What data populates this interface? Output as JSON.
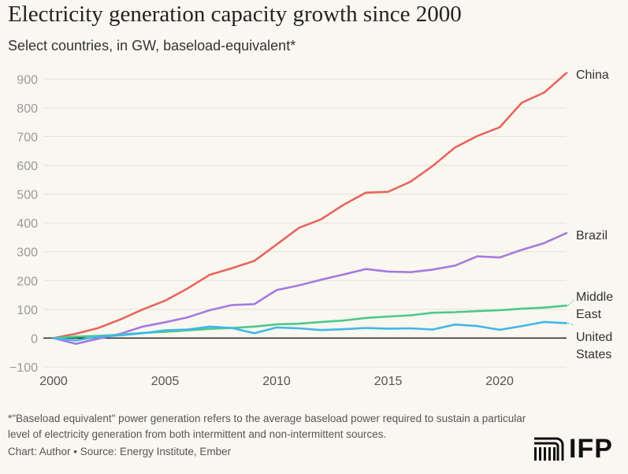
{
  "title": "Electricity generation capacity growth since 2000",
  "subtitle": "Select countries, in GW, baseload-equivalent*",
  "footnote": "*\"Baseload equivalent\" power generation refers to the average baseload power required to sustain a particular level of electricity generation from both intermittent and non-intermittent sources.",
  "source": "Chart: Author • Source: Energy Institute, Ember",
  "logo": {
    "text": "IFP",
    "icon": "building-columns-icon"
  },
  "chart_data": {
    "type": "line",
    "xlabel": "",
    "ylabel": "",
    "xlim": [
      2000,
      2023
    ],
    "ylim": [
      -100,
      950
    ],
    "x_ticks": [
      2000,
      2005,
      2010,
      2015,
      2020
    ],
    "y_ticks": [
      -100,
      0,
      100,
      200,
      300,
      400,
      500,
      600,
      700,
      800,
      900
    ],
    "grid": true,
    "legend": "direct labels at line ends (right)",
    "x": [
      2000,
      2001,
      2002,
      2003,
      2004,
      2005,
      2006,
      2007,
      2008,
      2009,
      2010,
      2011,
      2012,
      2013,
      2014,
      2015,
      2016,
      2017,
      2018,
      2019,
      2020,
      2021,
      2022,
      2023
    ],
    "series": [
      {
        "name": "China",
        "label_lines": [
          "China"
        ],
        "color": "#e8655f",
        "values": [
          0,
          15,
          35,
          65,
          100,
          130,
          172,
          220,
          243,
          268,
          325,
          383,
          413,
          463,
          505,
          508,
          543,
          598,
          662,
          702,
          732,
          818,
          853,
          921
        ]
      },
      {
        "name": "Brazil",
        "label_lines": [
          "Brazil"
        ],
        "color": "#a47ae0",
        "values": [
          0,
          -20,
          -2,
          15,
          40,
          55,
          72,
          97,
          115,
          118,
          167,
          183,
          203,
          221,
          240,
          231,
          229,
          238,
          252,
          284,
          280,
          307,
          330,
          365
        ]
      },
      {
        "name": "Middle East",
        "label_lines": [
          "Middle",
          "East"
        ],
        "color": "#4cc98a",
        "values": [
          0,
          5,
          8,
          12,
          18,
          22,
          27,
          32,
          35,
          40,
          48,
          50,
          56,
          61,
          70,
          75,
          79,
          88,
          90,
          94,
          97,
          102,
          106,
          113
        ]
      },
      {
        "name": "United States",
        "label_lines": [
          "United",
          "States"
        ],
        "color": "#41b7e8",
        "values": [
          0,
          -8,
          5,
          10,
          17,
          27,
          30,
          40,
          35,
          17,
          37,
          34,
          28,
          31,
          35,
          33,
          34,
          30,
          47,
          42,
          29,
          42,
          56,
          52
        ]
      }
    ]
  }
}
